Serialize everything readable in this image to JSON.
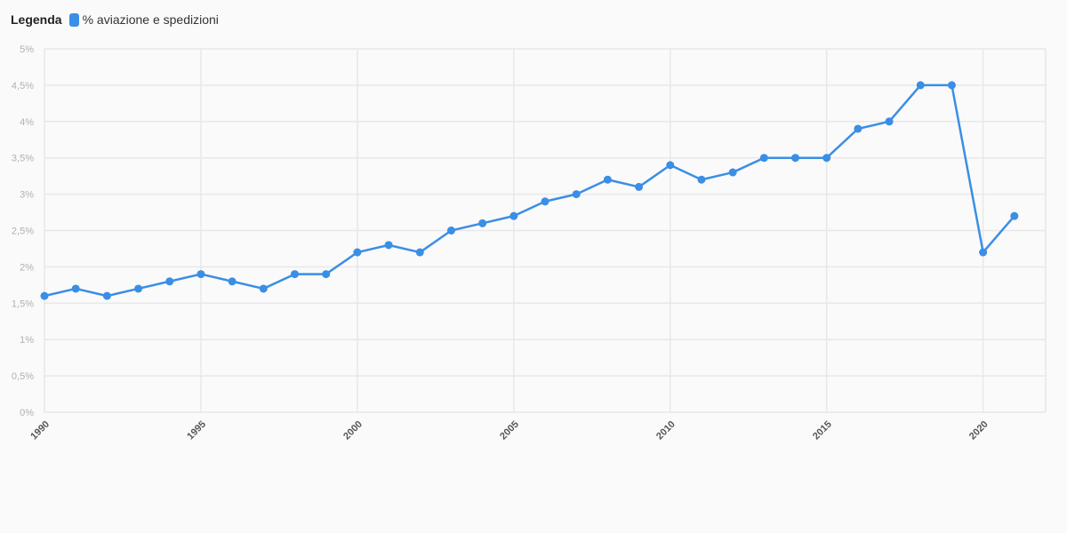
{
  "legend": {
    "title": "Legenda",
    "items": [
      {
        "label": "% aviazione e spedizioni",
        "color": "#3a8ee6"
      }
    ]
  },
  "chart_data": {
    "type": "line",
    "title": "",
    "xlabel": "",
    "ylabel": "",
    "x": [
      1990,
      1991,
      1992,
      1993,
      1994,
      1995,
      1996,
      1997,
      1998,
      1999,
      2000,
      2001,
      2002,
      2003,
      2004,
      2005,
      2006,
      2007,
      2008,
      2009,
      2010,
      2011,
      2012,
      2013,
      2014,
      2015,
      2016,
      2017,
      2018,
      2019,
      2020,
      2021
    ],
    "series": [
      {
        "name": "% aviazione e spedizioni",
        "color": "#3a8ee6",
        "values": [
          1.6,
          1.7,
          1.6,
          1.7,
          1.8,
          1.9,
          1.8,
          1.7,
          1.9,
          1.9,
          2.2,
          2.3,
          2.2,
          2.5,
          2.6,
          2.7,
          2.9,
          3.0,
          3.2,
          3.1,
          3.4,
          3.2,
          3.3,
          3.5,
          3.5,
          3.5,
          3.9,
          4.0,
          4.5,
          4.5,
          2.2,
          2.7
        ]
      }
    ],
    "ylim": [
      0,
      5
    ],
    "yticks": [
      0,
      0.5,
      1,
      1.5,
      2,
      2.5,
      3,
      3.5,
      4,
      4.5,
      5
    ],
    "ytick_labels": [
      "0%",
      "0,5%",
      "1%",
      "1,5%",
      "2%",
      "2,5%",
      "3%",
      "3,5%",
      "4%",
      "4,5%",
      "5%"
    ],
    "xticks": [
      1990,
      1995,
      2000,
      2005,
      2010,
      2015,
      2020
    ],
    "xtick_labels": [
      "1990",
      "1995",
      "2000",
      "2005",
      "2010",
      "2015",
      "2020"
    ],
    "xlim": [
      1990,
      2022
    ],
    "grid": true,
    "legend_position": "top-left",
    "grid_color": "#e8e8e8"
  }
}
